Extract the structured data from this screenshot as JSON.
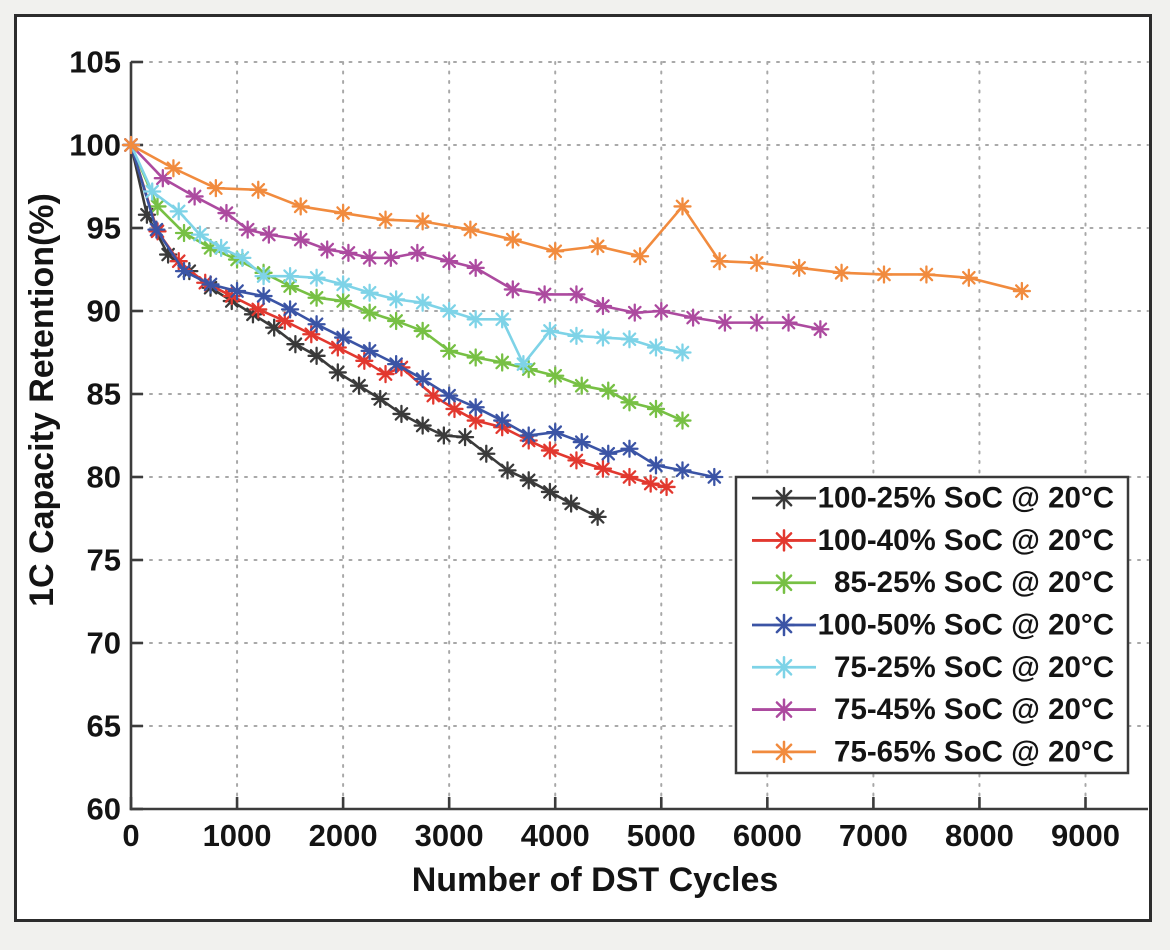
{
  "figure": {
    "outer_background": "#f1f1ee",
    "panel_background": "#ffffff",
    "panel_border_color": "#2c2c2c",
    "text_color": "#141414",
    "grid_color": "#a8a8a8",
    "axis_color": "#3c3c3c"
  },
  "chart_data": {
    "type": "line",
    "title": "",
    "xlabel": "Number of DST Cycles",
    "ylabel": "1C Capacity Retention(%)",
    "xlim": [
      0,
      9000
    ],
    "ylim": [
      60,
      105
    ],
    "xticks": [
      0,
      1000,
      2000,
      3000,
      4000,
      5000,
      6000,
      7000,
      8000,
      9000
    ],
    "yticks": [
      60,
      65,
      70,
      75,
      80,
      85,
      90,
      95,
      100,
      105
    ],
    "grid": "dotted",
    "legend_position": "lower right",
    "marker": "asterisk",
    "series": [
      {
        "name": "100-25% SoC @ 20°C",
        "color": "#3a3a3a",
        "x": [
          0,
          150,
          350,
          550,
          750,
          950,
          1150,
          1350,
          1550,
          1750,
          1950,
          2150,
          2350,
          2550,
          2750,
          2950,
          3150,
          3350,
          3550,
          3750,
          3950,
          4150,
          4400
        ],
        "y": [
          100,
          95.8,
          93.4,
          92.4,
          91.4,
          90.6,
          89.8,
          89.0,
          88.0,
          87.3,
          86.3,
          85.5,
          84.7,
          83.8,
          83.1,
          82.5,
          82.4,
          81.4,
          80.4,
          79.8,
          79.1,
          78.4,
          77.6
        ]
      },
      {
        "name": "100-40% SoC @ 20°C",
        "color": "#e2382f",
        "x": [
          0,
          250,
          450,
          700,
          950,
          1200,
          1450,
          1700,
          1950,
          2200,
          2400,
          2550,
          2850,
          3050,
          3250,
          3500,
          3750,
          3950,
          4200,
          4450,
          4700,
          4900,
          5050
        ],
        "y": [
          100,
          94.8,
          93.0,
          91.7,
          90.9,
          90.1,
          89.4,
          88.6,
          87.8,
          87.0,
          86.2,
          86.6,
          84.9,
          84.1,
          83.4,
          83.0,
          82.2,
          81.6,
          81.0,
          80.5,
          80.0,
          79.6,
          79.4
        ]
      },
      {
        "name": "85-25% SoC @ 20°C",
        "color": "#77c044",
        "x": [
          0,
          250,
          500,
          750,
          1000,
          1250,
          1500,
          1750,
          2000,
          2250,
          2500,
          2750,
          3000,
          3250,
          3500,
          3750,
          4000,
          4250,
          4500,
          4700,
          4950,
          5200
        ],
        "y": [
          100,
          96.3,
          94.7,
          93.8,
          93.1,
          92.3,
          91.5,
          90.8,
          90.6,
          89.9,
          89.4,
          88.8,
          87.6,
          87.2,
          86.9,
          86.5,
          86.1,
          85.5,
          85.2,
          84.5,
          84.1,
          83.4
        ]
      },
      {
        "name": "100-50% SoC @ 20°C",
        "color": "#3b54a5",
        "x": [
          0,
          240,
          500,
          750,
          1000,
          1250,
          1500,
          1750,
          2000,
          2250,
          2500,
          2750,
          3000,
          3250,
          3500,
          3750,
          4000,
          4250,
          4500,
          4700,
          4950,
          5200,
          5500
        ],
        "y": [
          100,
          94.9,
          92.4,
          91.6,
          91.2,
          90.9,
          90.1,
          89.2,
          88.4,
          87.6,
          86.8,
          85.9,
          84.9,
          84.2,
          83.4,
          82.5,
          82.7,
          82.1,
          81.4,
          81.7,
          80.7,
          80.4,
          80.0
        ]
      },
      {
        "name": "75-25% SoC @ 20°C",
        "color": "#7ed3e7",
        "x": [
          0,
          200,
          450,
          650,
          850,
          1050,
          1250,
          1500,
          1750,
          2000,
          2250,
          2500,
          2750,
          3000,
          3250,
          3500,
          3700,
          3950,
          4200,
          4450,
          4700,
          4950,
          5200
        ],
        "y": [
          100,
          97.2,
          96.0,
          94.6,
          93.8,
          93.2,
          92.1,
          92.1,
          92.0,
          91.6,
          91.1,
          90.7,
          90.5,
          90.0,
          89.5,
          89.5,
          86.8,
          88.8,
          88.5,
          88.4,
          88.3,
          87.8,
          87.5
        ]
      },
      {
        "name": "75-45% SoC @ 20°C",
        "color": "#ac4a9f",
        "x": [
          0,
          300,
          600,
          900,
          1100,
          1300,
          1600,
          1850,
          2050,
          2250,
          2450,
          2700,
          3000,
          3250,
          3600,
          3900,
          4200,
          4450,
          4750,
          5000,
          5300,
          5600,
          5900,
          6200,
          6500
        ],
        "y": [
          100,
          98.0,
          96.9,
          95.9,
          94.9,
          94.6,
          94.3,
          93.7,
          93.5,
          93.2,
          93.2,
          93.5,
          93.0,
          92.6,
          91.3,
          91.0,
          91.0,
          90.3,
          89.9,
          90.0,
          89.6,
          89.3,
          89.3,
          89.3,
          88.9
        ]
      },
      {
        "name": "75-65% SoC @ 20°C",
        "color": "#f18b3e",
        "x": [
          0,
          400,
          800,
          1200,
          1600,
          2000,
          2400,
          2750,
          3200,
          3600,
          4000,
          4400,
          4800,
          5200,
          5550,
          5900,
          6300,
          6700,
          7100,
          7500,
          7900,
          8400
        ],
        "y": [
          100,
          98.6,
          97.4,
          97.3,
          96.3,
          95.9,
          95.5,
          95.4,
          94.9,
          94.3,
          93.6,
          93.9,
          93.3,
          96.3,
          93.0,
          92.9,
          92.6,
          92.3,
          92.2,
          92.2,
          92.0,
          91.2
        ]
      }
    ]
  }
}
